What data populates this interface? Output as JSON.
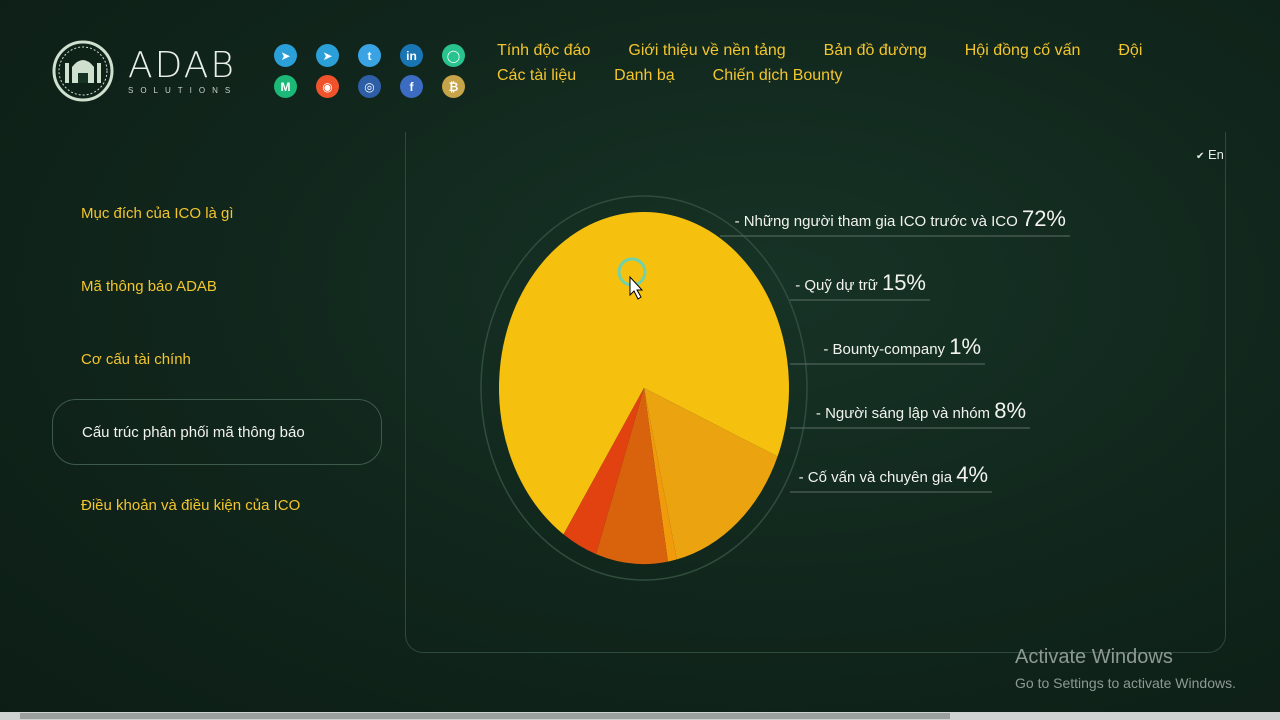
{
  "brand": {
    "name": "ADAB",
    "sub": "SOLUTIONS"
  },
  "social_icons": [
    {
      "name": "telegram-icon",
      "glyph": "➤",
      "color": "#2a9fd8"
    },
    {
      "name": "telegram-icon-2",
      "glyph": "➤",
      "color": "#2a9fd8"
    },
    {
      "name": "twitter-icon",
      "glyph": "t",
      "color": "#3aa3e4"
    },
    {
      "name": "linkedin-icon",
      "glyph": "in",
      "color": "#1a75b5"
    },
    {
      "name": "chat-icon",
      "glyph": "◯",
      "color": "#28c38e"
    },
    {
      "name": "medium-icon",
      "glyph": "M",
      "color": "#1bb877"
    },
    {
      "name": "reddit-icon",
      "glyph": "◉",
      "color": "#f0532b"
    },
    {
      "name": "github-icon",
      "glyph": "◎",
      "color": "#2e5fa6"
    },
    {
      "name": "facebook-icon",
      "glyph": "f",
      "color": "#3b6cc2"
    },
    {
      "name": "bitcoin-icon",
      "glyph": "₿",
      "color": "#c7a34a"
    }
  ],
  "nav": {
    "row1": [
      "Tính độc đáo",
      "Giới thiệu về nền tảng",
      "Bản đồ đường",
      "Hội đồng cố vấn",
      "Đội"
    ],
    "row2": [
      "Các tài liệu",
      "Danh bạ",
      "Chiến dịch Bounty"
    ]
  },
  "lang": "En",
  "sidebar": [
    {
      "label": "Mục đích của ICO là gì",
      "active": false
    },
    {
      "label": "Mã thông báo ADAB",
      "active": false
    },
    {
      "label": "Cơ cấu tài chính",
      "active": false
    },
    {
      "label": "Cấu trúc phân phối mã thông báo",
      "active": true
    },
    {
      "label": "Điều khoản và điều kiện của ICO",
      "active": false
    }
  ],
  "chart_data": {
    "type": "pie",
    "slices": [
      {
        "label": "- Những người tham gia ICO trước và ICO",
        "value": 72,
        "pct_text": "72%",
        "color": "#f6c10e"
      },
      {
        "label": "- Quỹ dự trữ",
        "value": 15,
        "pct_text": "15%",
        "color": "#eba40f"
      },
      {
        "label": "- Bounty-company",
        "value": 1,
        "pct_text": "1%",
        "color": "#f19b0c"
      },
      {
        "label": "- Người sáng lập và nhóm",
        "value": 8,
        "pct_text": "8%",
        "color": "#d9620c"
      },
      {
        "label": "- Cố vấn và chuyên gia",
        "value": 4,
        "pct_text": "4%",
        "color": "#e2420f"
      }
    ]
  },
  "watermark": {
    "title": "Activate Windows",
    "subtitle": "Go to Settings to activate Windows."
  }
}
